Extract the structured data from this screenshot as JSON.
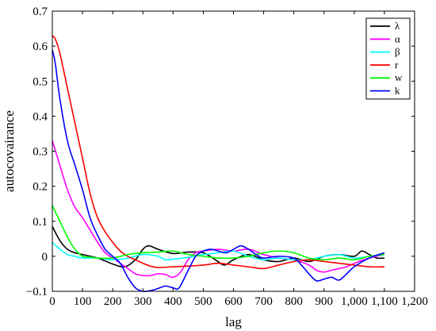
{
  "chart_data": {
    "type": "line",
    "title": "",
    "xlabel": "lag",
    "ylabel": "autocovairance",
    "xlim": [
      0,
      1200
    ],
    "ylim": [
      -0.1,
      0.7
    ],
    "xticks": [
      0,
      100,
      200,
      300,
      400,
      500,
      600,
      700,
      800,
      900,
      1000,
      1100,
      1200
    ],
    "xtick_labels": [
      "0",
      "100",
      "200",
      "300",
      "400",
      "500",
      "600",
      "700",
      "800",
      "900",
      "1,000",
      "1,100",
      "1,200"
    ],
    "yticks": [
      -0.1,
      0,
      0.1,
      0.2,
      0.3,
      0.4,
      0.5,
      0.6,
      0.7
    ],
    "ytick_labels": [
      "−0.1",
      "0",
      "0.1",
      "0.2",
      "0.3",
      "0.4",
      "0.5",
      "0.6",
      "0.7"
    ],
    "grid": false,
    "legend_position": "top-right",
    "series": [
      {
        "name": "λ",
        "color": "#000000",
        "x": [
          0,
          25,
          50,
          75,
          100,
          150,
          200,
          240,
          275,
          300,
          320,
          350,
          400,
          450,
          500,
          540,
          570,
          600,
          650,
          700,
          750,
          800,
          850,
          900,
          950,
          1000,
          1025,
          1050,
          1075,
          1100
        ],
        "y": [
          0.085,
          0.045,
          0.02,
          0.01,
          0.005,
          -0.005,
          -0.022,
          -0.03,
          -0.01,
          0.02,
          0.03,
          0.02,
          0.008,
          0.012,
          0.01,
          -0.01,
          -0.025,
          -0.01,
          0.005,
          -0.01,
          -0.015,
          -0.005,
          -0.015,
          0.0,
          0.005,
          0.0,
          0.015,
          0.005,
          -0.005,
          -0.005
        ]
      },
      {
        "name": "α",
        "color": "#ff00ff",
        "x": [
          0,
          25,
          50,
          75,
          100,
          125,
          150,
          175,
          200,
          225,
          250,
          275,
          300,
          325,
          350,
          375,
          400,
          425,
          450,
          475,
          500,
          550,
          600,
          650,
          700,
          750,
          800,
          850,
          875,
          900,
          925,
          950,
          975,
          1000,
          1050,
          1100
        ],
        "y": [
          0.33,
          0.26,
          0.19,
          0.14,
          0.11,
          0.075,
          0.04,
          0.01,
          -0.005,
          -0.02,
          -0.035,
          -0.05,
          -0.055,
          -0.055,
          -0.05,
          -0.052,
          -0.06,
          -0.045,
          -0.01,
          0.01,
          0.015,
          0.02,
          0.015,
          0.02,
          0.005,
          -0.005,
          -0.01,
          -0.025,
          -0.04,
          -0.045,
          -0.04,
          -0.035,
          -0.03,
          -0.02,
          -0.005,
          0.005
        ]
      },
      {
        "name": "β",
        "color": "#00ffff",
        "x": [
          0,
          25,
          50,
          75,
          100,
          150,
          200,
          250,
          300,
          350,
          375,
          400,
          450,
          500,
          550,
          600,
          650,
          700,
          750,
          800,
          850,
          900,
          950,
          1000,
          1050,
          1100
        ],
        "y": [
          0.04,
          0.02,
          0.005,
          0.0,
          -0.005,
          -0.005,
          -0.01,
          -0.005,
          0.005,
          0.0,
          -0.01,
          -0.008,
          -0.003,
          0.005,
          0.01,
          0.015,
          0.0,
          -0.01,
          -0.005,
          -0.01,
          -0.01,
          0.0,
          0.005,
          -0.005,
          0.0,
          0.005
        ]
      },
      {
        "name": "r",
        "color": "#ff0000",
        "x": [
          0,
          10,
          25,
          50,
          75,
          100,
          125,
          150,
          175,
          200,
          225,
          250,
          275,
          300,
          325,
          350,
          400,
          450,
          500,
          550,
          600,
          650,
          700,
          750,
          800,
          850,
          900,
          950,
          1000,
          1050,
          1100
        ],
        "y": [
          0.63,
          0.62,
          0.58,
          0.48,
          0.38,
          0.28,
          0.18,
          0.11,
          0.07,
          0.04,
          0.015,
          0.0,
          -0.01,
          -0.02,
          -0.028,
          -0.032,
          -0.03,
          -0.028,
          -0.025,
          -0.02,
          -0.025,
          -0.03,
          -0.035,
          -0.025,
          -0.015,
          -0.01,
          -0.015,
          -0.02,
          -0.025,
          -0.03,
          -0.03
        ]
      },
      {
        "name": "w",
        "color": "#00ff00",
        "x": [
          0,
          25,
          50,
          75,
          100,
          125,
          150,
          200,
          250,
          300,
          350,
          400,
          450,
          500,
          550,
          600,
          650,
          700,
          750,
          800,
          850,
          900,
          950,
          1000,
          1050,
          1100
        ],
        "y": [
          0.145,
          0.1,
          0.055,
          0.02,
          0.0,
          -0.002,
          -0.005,
          -0.005,
          0.005,
          0.01,
          0.012,
          0.015,
          0.005,
          0.0,
          -0.005,
          -0.005,
          0.0,
          0.01,
          0.015,
          0.01,
          -0.005,
          -0.01,
          -0.005,
          -0.01,
          0.0,
          0.005
        ]
      },
      {
        "name": "k",
        "color": "#0000ff",
        "x": [
          0,
          10,
          25,
          50,
          75,
          100,
          125,
          150,
          175,
          200,
          225,
          250,
          275,
          300,
          325,
          350,
          375,
          400,
          420,
          450,
          475,
          500,
          525,
          550,
          575,
          600,
          625,
          650,
          675,
          700,
          750,
          800,
          825,
          850,
          875,
          900,
          925,
          950,
          975,
          1000,
          1050,
          1100
        ],
        "y": [
          0.59,
          0.55,
          0.45,
          0.33,
          0.26,
          0.19,
          0.11,
          0.06,
          0.02,
          0.0,
          -0.02,
          -0.06,
          -0.09,
          -0.1,
          -0.098,
          -0.092,
          -0.085,
          -0.09,
          -0.09,
          -0.04,
          0.0,
          0.015,
          0.02,
          0.015,
          0.01,
          0.02,
          0.03,
          0.02,
          0.005,
          -0.005,
          0.0,
          -0.005,
          -0.025,
          -0.05,
          -0.07,
          -0.065,
          -0.06,
          -0.068,
          -0.05,
          -0.03,
          -0.005,
          0.01
        ]
      }
    ]
  }
}
